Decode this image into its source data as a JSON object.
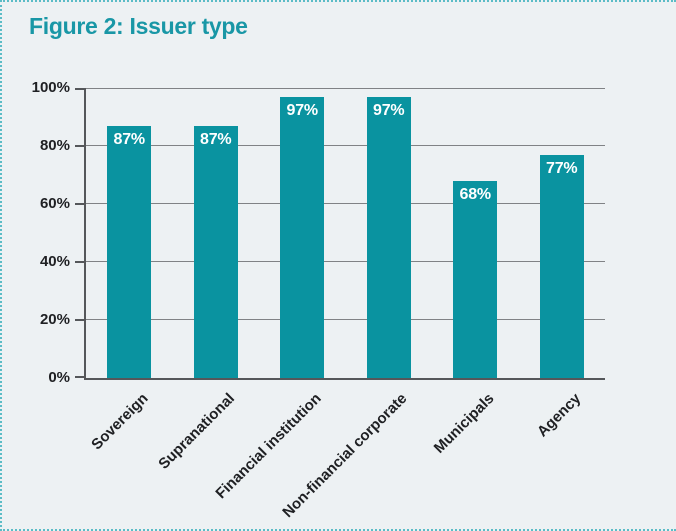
{
  "figure": {
    "title": "Figure 2: Issuer type"
  },
  "chart_data": {
    "type": "bar",
    "title": "Figure 2: Issuer type",
    "categories": [
      "Sovereign",
      "Supranational",
      "Financial institution",
      "Non-financial corporate",
      "Municipals",
      "Agency"
    ],
    "values": [
      87,
      87,
      97,
      97,
      68,
      77
    ],
    "value_labels": [
      "87%",
      "87%",
      "97%",
      "97%",
      "68%",
      "77%"
    ],
    "y_axis": {
      "min": 0,
      "max": 100,
      "ticks": [
        {
          "label": "100%",
          "value": 100
        },
        {
          "label": "80%",
          "value": 80
        },
        {
          "label": "60%",
          "value": 60
        },
        {
          "label": "40%",
          "value": 40
        },
        {
          "label": "20%",
          "value": 20
        },
        {
          "label": "0%",
          "value": 0
        }
      ]
    },
    "xlabel": "",
    "ylabel": "",
    "grid": true,
    "legend": false,
    "layout": {
      "grid_behind_bars": true,
      "x_labels_rotation_deg": -45,
      "value_labels_inside_top": true
    },
    "colors": {
      "bar": "#0a93a0",
      "title": "#1997a6",
      "background": "#edf1f3",
      "gridline": "#808285",
      "axis": "#55575a",
      "tick_label": "#1f2023",
      "bar_label": "#ffffff",
      "panel_border": "#5bbcc6"
    }
  }
}
